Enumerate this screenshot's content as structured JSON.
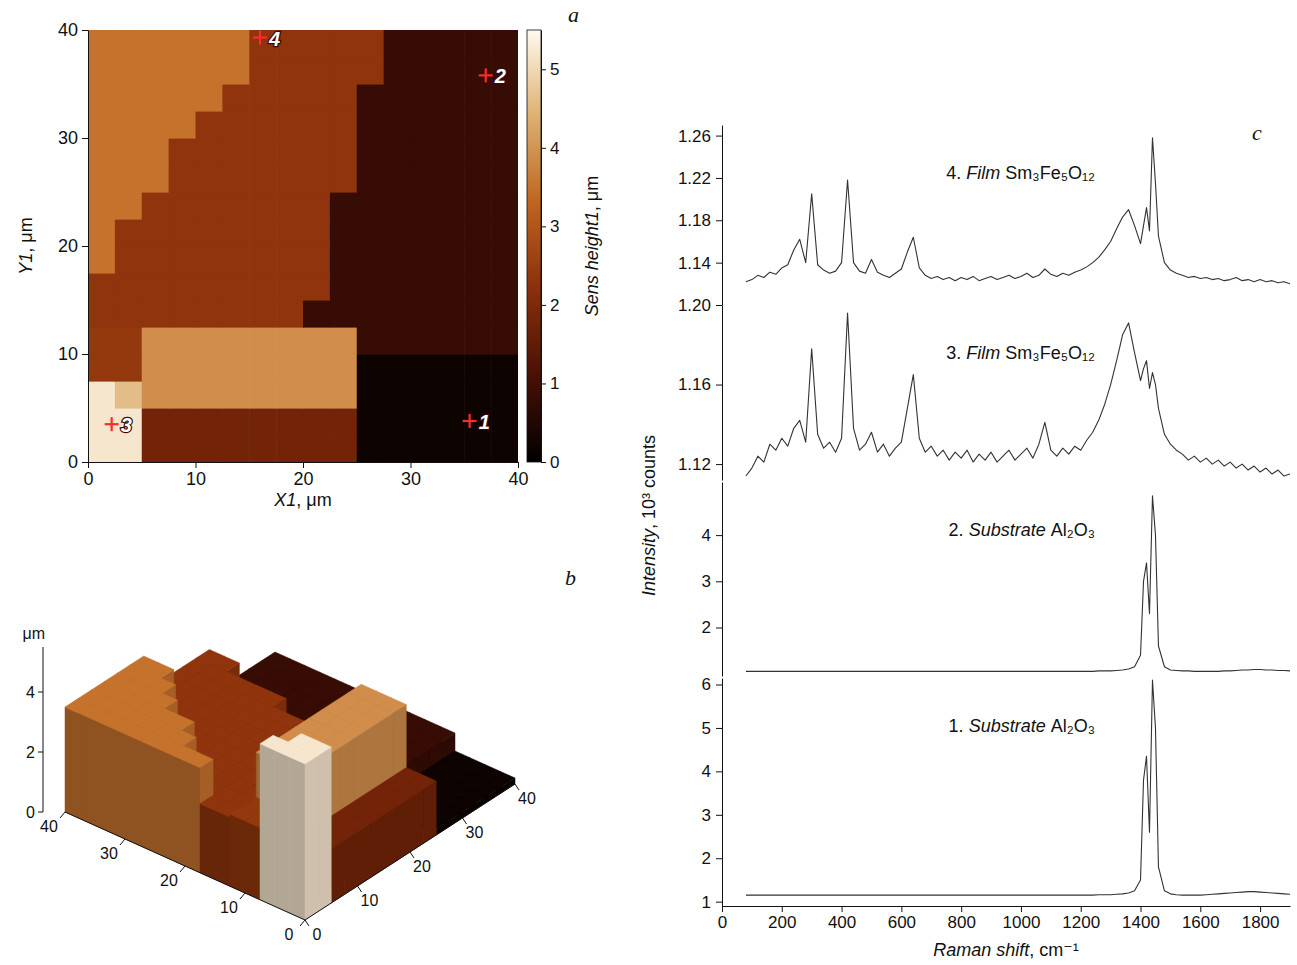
{
  "chart_data": [
    {
      "type": "heatmap",
      "panel": "a",
      "xlabel": "X1, μm",
      "ylabel": "Y1, μm",
      "xlim": [
        0,
        40
      ],
      "ylim": [
        0,
        40
      ],
      "xticks": [
        0,
        10,
        20,
        30,
        40
      ],
      "yticks": [
        0,
        10,
        20,
        30,
        40
      ],
      "z": [
        [
          5.2,
          5.2,
          1.8,
          1.8,
          1.8,
          1.8,
          1.8,
          1.8,
          1.8,
          1.8,
          0.2,
          0.2,
          0.2,
          0.2,
          0.2,
          0.2
        ],
        [
          5.2,
          5.2,
          1.8,
          1.8,
          1.8,
          1.8,
          1.8,
          1.8,
          1.8,
          1.8,
          0.2,
          0.2,
          0.2,
          0.2,
          0.2,
          0.2
        ],
        [
          5.2,
          4.6,
          3.9,
          3.9,
          3.9,
          3.9,
          3.9,
          3.9,
          3.9,
          3.9,
          0.2,
          0.2,
          0.2,
          0.2,
          0.2,
          0.2
        ],
        [
          2.4,
          2.4,
          3.9,
          3.9,
          3.9,
          3.9,
          3.9,
          3.9,
          3.9,
          3.9,
          0.2,
          0.2,
          0.2,
          0.2,
          0.2,
          0.2
        ],
        [
          2.4,
          2.4,
          3.9,
          3.9,
          3.9,
          3.9,
          3.9,
          3.9,
          3.9,
          3.9,
          0.8,
          0.8,
          0.8,
          0.8,
          0.8,
          0.8
        ],
        [
          2.3,
          2.3,
          2.3,
          2.3,
          2.3,
          2.3,
          2.3,
          2.3,
          0.8,
          0.8,
          0.8,
          0.8,
          0.8,
          0.8,
          0.8,
          0.8
        ],
        [
          2.3,
          2.3,
          2.3,
          2.3,
          2.3,
          2.3,
          2.3,
          2.3,
          2.3,
          0.8,
          0.8,
          0.8,
          0.8,
          0.8,
          0.8,
          0.8
        ],
        [
          3.5,
          2.3,
          2.3,
          2.3,
          2.3,
          2.3,
          2.3,
          2.3,
          2.3,
          0.8,
          0.8,
          0.8,
          0.8,
          0.8,
          0.8,
          0.8
        ],
        [
          3.5,
          2.3,
          2.3,
          2.3,
          2.3,
          2.3,
          2.3,
          2.3,
          2.3,
          0.8,
          0.8,
          0.8,
          0.8,
          0.8,
          0.8,
          0.8
        ],
        [
          3.5,
          3.5,
          2.3,
          2.3,
          2.3,
          2.3,
          2.3,
          2.3,
          2.3,
          0.8,
          0.8,
          0.8,
          0.8,
          0.8,
          0.8,
          0.8
        ],
        [
          3.5,
          3.5,
          3.5,
          2.3,
          2.3,
          2.3,
          2.3,
          2.3,
          2.3,
          2.3,
          0.8,
          0.8,
          0.8,
          0.8,
          0.8,
          0.8
        ],
        [
          3.5,
          3.5,
          3.5,
          2.3,
          2.3,
          2.3,
          2.3,
          2.3,
          2.3,
          2.3,
          0.8,
          0.8,
          0.8,
          0.8,
          0.8,
          0.8
        ],
        [
          3.5,
          3.5,
          3.5,
          3.5,
          2.3,
          2.3,
          2.3,
          2.3,
          2.3,
          2.3,
          0.8,
          0.8,
          0.8,
          0.8,
          0.8,
          0.8
        ],
        [
          3.5,
          3.5,
          3.5,
          3.5,
          3.5,
          2.3,
          2.3,
          2.3,
          2.3,
          2.3,
          0.8,
          0.8,
          0.8,
          0.8,
          0.8,
          0.8
        ],
        [
          3.5,
          3.5,
          3.5,
          3.5,
          3.5,
          3.5,
          2.3,
          2.3,
          2.3,
          2.3,
          2.3,
          0.8,
          0.8,
          0.8,
          0.8,
          0.8
        ],
        [
          3.5,
          3.5,
          3.5,
          3.5,
          3.5,
          3.5,
          2.3,
          2.3,
          2.3,
          2.3,
          2.3,
          0.8,
          0.8,
          0.8,
          0.8,
          0.8
        ]
      ],
      "colorbar_label": "Sens height1, μm",
      "colorbar_lim": [
        0,
        5.5
      ],
      "colorbar_ticks": [
        0,
        1,
        2,
        3,
        4,
        5
      ],
      "points": [
        {
          "label": "1",
          "x": 35.5,
          "y": 3.8
        },
        {
          "label": "2",
          "x": 37,
          "y": 35.8
        },
        {
          "label": "3",
          "x": 2.2,
          "y": 3.5
        },
        {
          "label": "4",
          "x": 16,
          "y": 39.3
        }
      ]
    },
    {
      "type": "surface3d",
      "panel": "b",
      "xlim": [
        0,
        40
      ],
      "ylim": [
        0,
        40
      ],
      "zlim": [
        0,
        5.5
      ],
      "xticks": [
        0,
        10,
        20,
        30,
        40
      ],
      "yticks": [
        0,
        10,
        20,
        30,
        40
      ],
      "zticks": [
        0,
        2,
        4
      ],
      "zlabel": "μm"
    },
    {
      "type": "line",
      "panel": "c",
      "title": "4. Film Sm₃Fe₅O₁₂",
      "color": "#333333",
      "tick_labels": "y",
      "xlim": [
        0,
        1900
      ],
      "ylim": [
        1.1,
        1.27
      ],
      "yticks": [
        1.14,
        1.18,
        1.22,
        1.26
      ],
      "x": [
        80,
        100,
        120,
        140,
        160,
        180,
        200,
        220,
        240,
        260,
        280,
        300,
        320,
        340,
        360,
        380,
        400,
        420,
        440,
        460,
        480,
        500,
        520,
        540,
        560,
        580,
        600,
        620,
        640,
        660,
        680,
        700,
        720,
        740,
        760,
        780,
        800,
        820,
        840,
        860,
        880,
        900,
        920,
        940,
        960,
        980,
        1000,
        1020,
        1040,
        1060,
        1080,
        1100,
        1120,
        1140,
        1160,
        1180,
        1200,
        1220,
        1240,
        1260,
        1280,
        1300,
        1320,
        1340,
        1360,
        1380,
        1400,
        1410,
        1420,
        1430,
        1440,
        1450,
        1460,
        1480,
        1500,
        1520,
        1540,
        1560,
        1580,
        1600,
        1620,
        1640,
        1660,
        1680,
        1700,
        1720,
        1740,
        1760,
        1780,
        1800,
        1820,
        1840,
        1860,
        1880,
        1900
      ],
      "values": [
        1.122,
        1.124,
        1.128,
        1.126,
        1.131,
        1.129,
        1.135,
        1.138,
        1.152,
        1.162,
        1.14,
        1.205,
        1.138,
        1.133,
        1.13,
        1.132,
        1.14,
        1.218,
        1.14,
        1.132,
        1.13,
        1.143,
        1.131,
        1.128,
        1.126,
        1.13,
        1.134,
        1.15,
        1.164,
        1.135,
        1.128,
        1.125,
        1.127,
        1.124,
        1.126,
        1.123,
        1.126,
        1.124,
        1.127,
        1.123,
        1.125,
        1.127,
        1.124,
        1.126,
        1.128,
        1.125,
        1.127,
        1.13,
        1.126,
        1.128,
        1.134,
        1.129,
        1.127,
        1.13,
        1.128,
        1.131,
        1.133,
        1.136,
        1.14,
        1.145,
        1.152,
        1.16,
        1.172,
        1.183,
        1.19,
        1.175,
        1.158,
        1.175,
        1.192,
        1.17,
        1.258,
        1.215,
        1.165,
        1.14,
        1.133,
        1.13,
        1.128,
        1.126,
        1.127,
        1.125,
        1.126,
        1.124,
        1.125,
        1.123,
        1.124,
        1.126,
        1.123,
        1.124,
        1.122,
        1.124,
        1.122,
        1.123,
        1.121,
        1.122,
        1.12
      ]
    },
    {
      "type": "line",
      "title": "3. Film Sm₃Fe₅O₁₂",
      "color": "#333333",
      "tick_labels": "y",
      "xlim": [
        0,
        1900
      ],
      "ylim": [
        1.112,
        1.2
      ],
      "yticks": [
        1.12,
        1.16,
        {
          "value": 1.2,
          "label": "1.20"
        }
      ],
      "x": [
        80,
        100,
        120,
        140,
        160,
        180,
        200,
        220,
        240,
        260,
        280,
        300,
        320,
        340,
        360,
        380,
        400,
        420,
        440,
        460,
        480,
        500,
        520,
        540,
        560,
        580,
        600,
        620,
        640,
        660,
        680,
        700,
        720,
        740,
        760,
        780,
        800,
        820,
        840,
        860,
        880,
        900,
        920,
        940,
        960,
        980,
        1000,
        1020,
        1040,
        1060,
        1080,
        1100,
        1120,
        1140,
        1160,
        1180,
        1200,
        1220,
        1240,
        1260,
        1280,
        1300,
        1320,
        1340,
        1360,
        1380,
        1400,
        1410,
        1420,
        1430,
        1440,
        1450,
        1460,
        1480,
        1500,
        1520,
        1540,
        1560,
        1580,
        1600,
        1620,
        1640,
        1660,
        1680,
        1700,
        1720,
        1740,
        1760,
        1780,
        1800,
        1820,
        1840,
        1860,
        1880,
        1900
      ],
      "values": [
        1.114,
        1.118,
        1.124,
        1.121,
        1.13,
        1.127,
        1.133,
        1.129,
        1.138,
        1.142,
        1.131,
        1.178,
        1.135,
        1.128,
        1.131,
        1.126,
        1.133,
        1.196,
        1.138,
        1.127,
        1.13,
        1.136,
        1.126,
        1.13,
        1.124,
        1.128,
        1.131,
        1.148,
        1.165,
        1.133,
        1.126,
        1.129,
        1.124,
        1.127,
        1.122,
        1.126,
        1.123,
        1.127,
        1.121,
        1.125,
        1.122,
        1.126,
        1.121,
        1.124,
        1.127,
        1.122,
        1.125,
        1.128,
        1.123,
        1.13,
        1.141,
        1.127,
        1.124,
        1.128,
        1.125,
        1.129,
        1.127,
        1.132,
        1.136,
        1.142,
        1.15,
        1.16,
        1.172,
        1.185,
        1.191,
        1.176,
        1.162,
        1.168,
        1.172,
        1.158,
        1.166,
        1.16,
        1.148,
        1.135,
        1.13,
        1.127,
        1.125,
        1.122,
        1.124,
        1.121,
        1.123,
        1.12,
        1.122,
        1.119,
        1.121,
        1.118,
        1.12,
        1.117,
        1.119,
        1.116,
        1.118,
        1.115,
        1.117,
        1.114,
        1.115
      ]
    },
    {
      "type": "line",
      "title": "2. Substrate Al₂O₃",
      "ylabel": "Intensity, 10³ counts",
      "color": "#333333",
      "tick_labels": "y",
      "xlim": [
        0,
        1900
      ],
      "ylim": [
        0.95,
        5.15
      ],
      "yticks": [
        2,
        3,
        4
      ],
      "x": [
        80,
        100,
        120,
        140,
        160,
        180,
        200,
        220,
        240,
        260,
        280,
        300,
        320,
        340,
        360,
        380,
        400,
        420,
        440,
        460,
        480,
        500,
        520,
        540,
        560,
        580,
        600,
        620,
        640,
        660,
        680,
        700,
        720,
        740,
        760,
        780,
        800,
        820,
        840,
        860,
        880,
        900,
        920,
        940,
        960,
        980,
        1000,
        1020,
        1040,
        1060,
        1080,
        1100,
        1120,
        1140,
        1160,
        1180,
        1200,
        1220,
        1240,
        1260,
        1280,
        1300,
        1320,
        1340,
        1360,
        1380,
        1400,
        1410,
        1420,
        1430,
        1440,
        1450,
        1460,
        1480,
        1500,
        1520,
        1540,
        1560,
        1580,
        1600,
        1620,
        1640,
        1660,
        1680,
        1700,
        1720,
        1740,
        1760,
        1780,
        1800,
        1820,
        1840,
        1860,
        1880,
        1900
      ],
      "values": [
        1.05,
        1.05,
        1.05,
        1.05,
        1.05,
        1.05,
        1.05,
        1.05,
        1.05,
        1.05,
        1.05,
        1.05,
        1.05,
        1.05,
        1.05,
        1.05,
        1.05,
        1.05,
        1.05,
        1.05,
        1.05,
        1.05,
        1.05,
        1.05,
        1.05,
        1.05,
        1.05,
        1.05,
        1.05,
        1.05,
        1.05,
        1.05,
        1.05,
        1.05,
        1.05,
        1.05,
        1.05,
        1.05,
        1.05,
        1.05,
        1.05,
        1.05,
        1.05,
        1.05,
        1.05,
        1.05,
        1.05,
        1.05,
        1.05,
        1.05,
        1.05,
        1.05,
        1.05,
        1.05,
        1.05,
        1.05,
        1.05,
        1.05,
        1.05,
        1.06,
        1.06,
        1.06,
        1.07,
        1.08,
        1.1,
        1.15,
        1.4,
        3.0,
        3.4,
        2.3,
        4.85,
        4.0,
        1.6,
        1.15,
        1.08,
        1.07,
        1.06,
        1.06,
        1.05,
        1.05,
        1.05,
        1.05,
        1.05,
        1.06,
        1.06,
        1.07,
        1.08,
        1.08,
        1.09,
        1.09,
        1.08,
        1.08,
        1.07,
        1.07,
        1.06
      ]
    },
    {
      "type": "line",
      "title": "1. Substrate Al₂O₃",
      "xlabel": "Raman shift, cm⁻¹",
      "color": "#333333",
      "xlim": [
        0,
        1900
      ],
      "xticks": [
        0,
        200,
        400,
        600,
        800,
        1000,
        1200,
        1400,
        1600,
        1800
      ],
      "ylim": [
        0.9,
        6.15
      ],
      "yticks": [
        1,
        2,
        3,
        4,
        5,
        6
      ],
      "x": [
        80,
        100,
        120,
        140,
        160,
        180,
        200,
        220,
        240,
        260,
        280,
        300,
        320,
        340,
        360,
        380,
        400,
        420,
        440,
        460,
        480,
        500,
        520,
        540,
        560,
        580,
        600,
        620,
        640,
        660,
        680,
        700,
        720,
        740,
        760,
        780,
        800,
        820,
        840,
        860,
        880,
        900,
        920,
        940,
        960,
        980,
        1000,
        1020,
        1040,
        1060,
        1080,
        1100,
        1120,
        1140,
        1160,
        1180,
        1200,
        1220,
        1240,
        1260,
        1280,
        1300,
        1320,
        1340,
        1360,
        1380,
        1400,
        1410,
        1420,
        1430,
        1440,
        1450,
        1460,
        1480,
        1500,
        1520,
        1540,
        1560,
        1580,
        1600,
        1620,
        1640,
        1660,
        1680,
        1700,
        1720,
        1740,
        1760,
        1780,
        1800,
        1820,
        1840,
        1860,
        1880,
        1900
      ],
      "values": [
        1.15,
        1.15,
        1.15,
        1.15,
        1.15,
        1.15,
        1.15,
        1.15,
        1.15,
        1.15,
        1.15,
        1.15,
        1.15,
        1.15,
        1.15,
        1.15,
        1.15,
        1.15,
        1.15,
        1.15,
        1.15,
        1.15,
        1.15,
        1.15,
        1.15,
        1.15,
        1.15,
        1.15,
        1.15,
        1.15,
        1.15,
        1.15,
        1.15,
        1.15,
        1.15,
        1.15,
        1.15,
        1.15,
        1.15,
        1.15,
        1.15,
        1.15,
        1.15,
        1.15,
        1.15,
        1.15,
        1.15,
        1.15,
        1.15,
        1.15,
        1.15,
        1.15,
        1.15,
        1.15,
        1.15,
        1.15,
        1.15,
        1.15,
        1.15,
        1.16,
        1.16,
        1.16,
        1.17,
        1.18,
        1.2,
        1.25,
        1.5,
        3.8,
        4.35,
        2.6,
        6.1,
        5.0,
        1.8,
        1.25,
        1.18,
        1.16,
        1.15,
        1.15,
        1.15,
        1.15,
        1.16,
        1.17,
        1.18,
        1.19,
        1.2,
        1.21,
        1.22,
        1.23,
        1.23,
        1.22,
        1.21,
        1.2,
        1.19,
        1.18,
        1.17
      ]
    }
  ]
}
